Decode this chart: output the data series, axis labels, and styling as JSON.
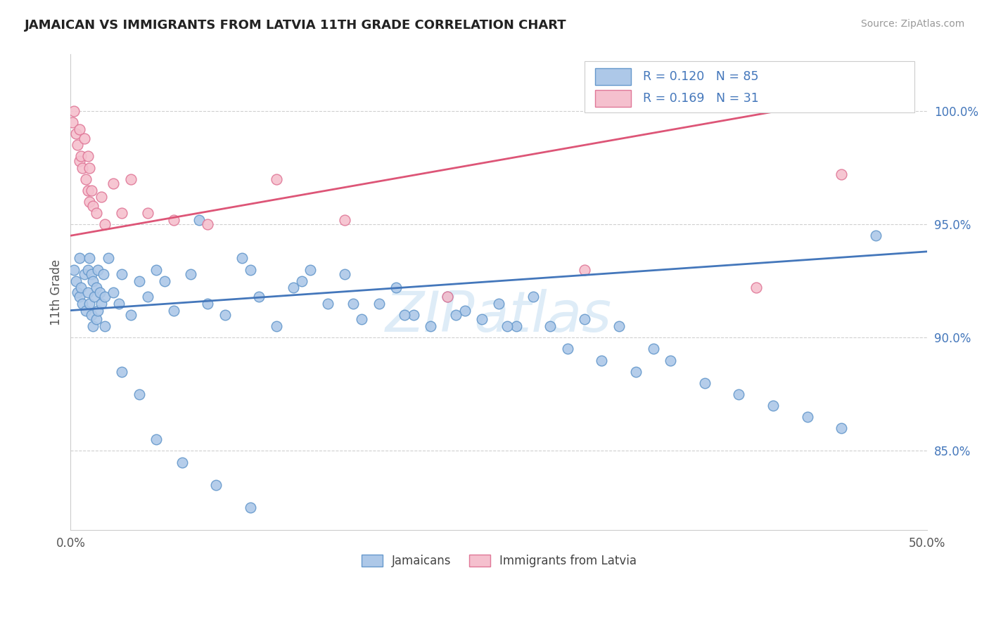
{
  "title": "JAMAICAN VS IMMIGRANTS FROM LATVIA 11TH GRADE CORRELATION CHART",
  "source": "Source: ZipAtlas.com",
  "ylabel": "11th Grade",
  "yticks": [
    85.0,
    90.0,
    95.0,
    100.0
  ],
  "ytick_labels": [
    "85.0%",
    "90.0%",
    "95.0%",
    "100.0%"
  ],
  "xlim": [
    0.0,
    50.0
  ],
  "ylim": [
    81.5,
    102.5
  ],
  "blue_R": 0.12,
  "blue_N": 85,
  "pink_R": 0.169,
  "pink_N": 31,
  "blue_color": "#adc8e8",
  "blue_edge": "#6699cc",
  "pink_color": "#f5c0ce",
  "pink_edge": "#e07898",
  "blue_line_color": "#4477bb",
  "pink_line_color": "#dd5577",
  "legend_color": "#4477bb",
  "watermark_color": "#d0e4f5",
  "blue_line_x": [
    0,
    50
  ],
  "blue_line_y": [
    91.2,
    93.8
  ],
  "pink_line_x": [
    0,
    45
  ],
  "pink_line_y": [
    94.5,
    100.5
  ],
  "blue_scatter_x": [
    0.2,
    0.3,
    0.4,
    0.5,
    0.5,
    0.6,
    0.7,
    0.8,
    0.9,
    1.0,
    1.0,
    1.1,
    1.1,
    1.2,
    1.2,
    1.3,
    1.3,
    1.4,
    1.5,
    1.5,
    1.6,
    1.6,
    1.7,
    1.8,
    1.9,
    2.0,
    2.0,
    2.2,
    2.5,
    2.8,
    3.0,
    3.5,
    4.0,
    4.5,
    5.0,
    5.5,
    6.0,
    7.0,
    8.0,
    9.0,
    10.0,
    11.0,
    12.0,
    13.0,
    14.0,
    15.0,
    16.0,
    17.0,
    18.0,
    19.0,
    20.0,
    21.0,
    22.0,
    23.0,
    24.0,
    25.0,
    26.0,
    27.0,
    28.0,
    29.0,
    30.0,
    31.0,
    32.0,
    33.0,
    34.0,
    35.0,
    37.0,
    39.0,
    41.0,
    43.0,
    45.0,
    7.5,
    10.5,
    13.5,
    16.5,
    19.5,
    22.5,
    25.5,
    3.0,
    4.0,
    5.0,
    6.5,
    8.5,
    10.5,
    47.0
  ],
  "blue_scatter_y": [
    93.0,
    92.5,
    92.0,
    93.5,
    91.8,
    92.2,
    91.5,
    92.8,
    91.2,
    93.0,
    92.0,
    93.5,
    91.5,
    92.8,
    91.0,
    92.5,
    90.5,
    91.8,
    92.2,
    90.8,
    93.0,
    91.2,
    92.0,
    91.5,
    92.8,
    91.8,
    90.5,
    93.5,
    92.0,
    91.5,
    92.8,
    91.0,
    92.5,
    91.8,
    93.0,
    92.5,
    91.2,
    92.8,
    91.5,
    91.0,
    93.5,
    91.8,
    90.5,
    92.2,
    93.0,
    91.5,
    92.8,
    90.8,
    91.5,
    92.2,
    91.0,
    90.5,
    91.8,
    91.2,
    90.8,
    91.5,
    90.5,
    91.8,
    90.5,
    89.5,
    90.8,
    89.0,
    90.5,
    88.5,
    89.5,
    89.0,
    88.0,
    87.5,
    87.0,
    86.5,
    86.0,
    95.2,
    93.0,
    92.5,
    91.5,
    91.0,
    91.0,
    90.5,
    88.5,
    87.5,
    85.5,
    84.5,
    83.5,
    82.5,
    94.5
  ],
  "pink_scatter_x": [
    0.1,
    0.2,
    0.3,
    0.4,
    0.5,
    0.5,
    0.6,
    0.7,
    0.8,
    0.9,
    1.0,
    1.0,
    1.1,
    1.1,
    1.2,
    1.3,
    1.5,
    1.8,
    2.0,
    2.5,
    3.0,
    3.5,
    4.5,
    6.0,
    8.0,
    12.0,
    16.0,
    22.0,
    30.0,
    40.0,
    45.0
  ],
  "pink_scatter_y": [
    99.5,
    100.0,
    99.0,
    98.5,
    99.2,
    97.8,
    98.0,
    97.5,
    98.8,
    97.0,
    96.5,
    98.0,
    97.5,
    96.0,
    96.5,
    95.8,
    95.5,
    96.2,
    95.0,
    96.8,
    95.5,
    97.0,
    95.5,
    95.2,
    95.0,
    97.0,
    95.2,
    91.8,
    93.0,
    92.2,
    97.2
  ]
}
